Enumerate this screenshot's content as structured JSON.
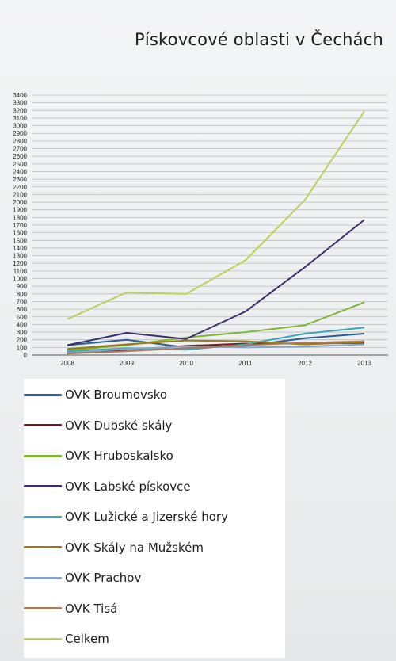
{
  "title": "Pískovcové oblasti v Čechách",
  "chart_data": {
    "type": "line",
    "title": "Pískovcové oblasti v Čechách",
    "xlabel": "",
    "ylabel": "",
    "categories": [
      "2008",
      "2009",
      "2010",
      "2011",
      "2012",
      "2013"
    ],
    "ylim": [
      0,
      3400
    ],
    "ytick_step": 100,
    "grid": true,
    "legend_position": "bottom",
    "series": [
      {
        "name": "OVK Broumovsko",
        "color": "#2a5f96",
        "values": [
          130,
          200,
          100,
          120,
          220,
          280
        ]
      },
      {
        "name": "OVK Dubské skály",
        "color": "#6a1a2a",
        "values": [
          40,
          60,
          120,
          150,
          150,
          160
        ]
      },
      {
        "name": "OVK Hruboskalsko",
        "color": "#7fb52e",
        "values": [
          60,
          130,
          230,
          300,
          390,
          690
        ]
      },
      {
        "name": "OVK Labské pískovce",
        "color": "#3b2f6e",
        "values": [
          130,
          290,
          210,
          570,
          1150,
          1770
        ]
      },
      {
        "name": "OVK Lužické a Jizerské hory",
        "color": "#3aa7b9",
        "values": [
          50,
          90,
          70,
          140,
          280,
          360
        ]
      },
      {
        "name": "OVK Skály na Mužském",
        "color": "#9a7a14",
        "values": [
          80,
          140,
          190,
          180,
          140,
          170
        ]
      },
      {
        "name": "OVK Prachov",
        "color": "#8aa4c8",
        "values": [
          30,
          80,
          110,
          100,
          110,
          140
        ]
      },
      {
        "name": "OVK Tisá",
        "color": "#a57c5c",
        "values": [
          20,
          50,
          90,
          130,
          160,
          180
        ]
      },
      {
        "name": "Celkem",
        "color": "#b7d35a",
        "values": [
          470,
          820,
          800,
          1240,
          2030,
          3190
        ]
      }
    ]
  }
}
